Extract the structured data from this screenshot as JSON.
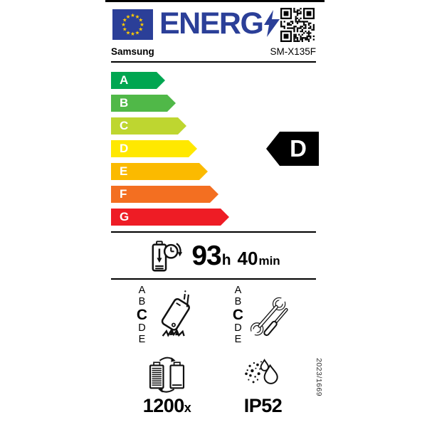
{
  "colors": {
    "eu_blue": "#2b3f98",
    "star_yellow": "#ffcc00",
    "rating_black": "#000000"
  },
  "header": {
    "logo_text": "ENERG",
    "logo_bolt_icon": "lightning-bolt-icon",
    "flag_icon": "eu-flag-icon",
    "qr_icon": "qr-code-icon"
  },
  "brand": {
    "manufacturer": "Samsung",
    "model": "SM-X135F"
  },
  "efficiency_scale": [
    {
      "grade": "A",
      "color": "#00a651"
    },
    {
      "grade": "B",
      "color": "#50b848"
    },
    {
      "grade": "C",
      "color": "#bed630"
    },
    {
      "grade": "D",
      "color": "#ffe800"
    },
    {
      "grade": "E",
      "color": "#fbba00"
    },
    {
      "grade": "F",
      "color": "#f36f21"
    },
    {
      "grade": "G",
      "color": "#ee1c25"
    }
  ],
  "rating": {
    "grade": "D"
  },
  "battery_life": {
    "icon": "battery-endurance-clock-icon",
    "hours": "93",
    "hours_unit": "h",
    "minutes": "40",
    "minutes_unit": "min"
  },
  "drop_resistance": {
    "icon": "phone-drop-icon",
    "letters": [
      "A",
      "B",
      "C",
      "D",
      "E"
    ],
    "class": "C"
  },
  "repairability": {
    "icon": "repair-tools-icon",
    "letters": [
      "A",
      "B",
      "C",
      "D",
      "E"
    ],
    "class": "C"
  },
  "battery_cycles": {
    "icon": "battery-cycle-icon",
    "count": "1200",
    "unit": "x"
  },
  "ingress_protection": {
    "icon": "dust-water-icon",
    "rating": "IP52"
  },
  "regulation": "2023/1669"
}
